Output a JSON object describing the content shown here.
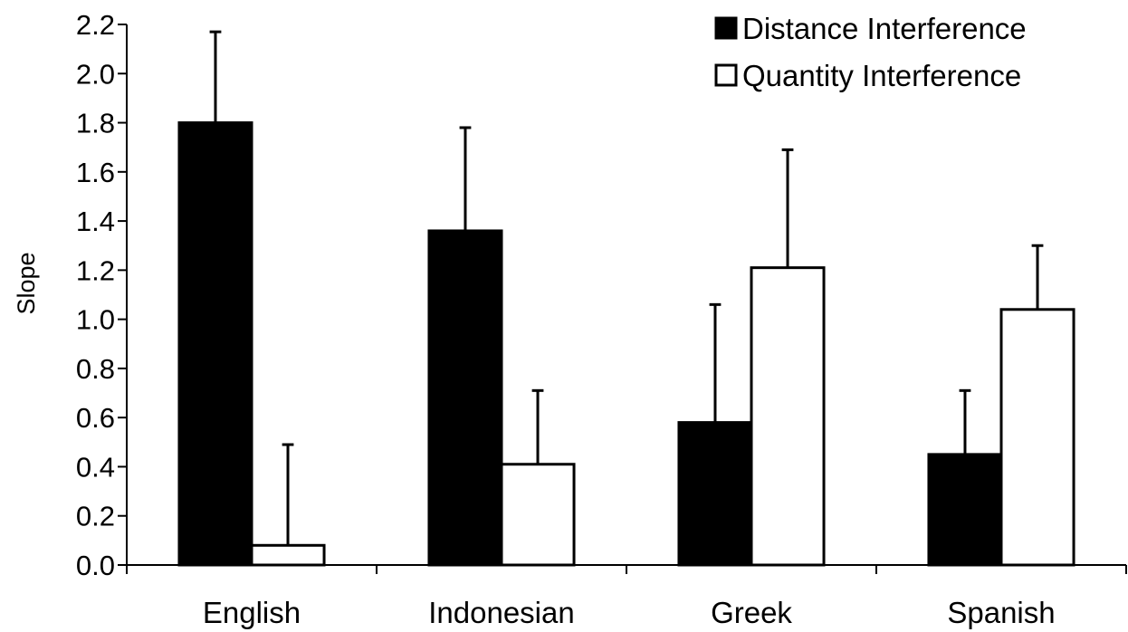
{
  "chart_data": {
    "type": "bar",
    "categories": [
      "English",
      "Indonesian",
      "Greek",
      "Spanish"
    ],
    "series": [
      {
        "name": "Distance Interference",
        "color": "#000000",
        "values": [
          1.8,
          1.36,
          0.58,
          0.45
        ],
        "error_upper": [
          2.17,
          1.78,
          1.06,
          0.71
        ]
      },
      {
        "name": "Quantity Interference",
        "color": "#ffffff",
        "values": [
          0.08,
          0.41,
          1.21,
          1.04
        ],
        "error_upper": [
          0.49,
          0.71,
          1.69,
          1.3
        ]
      }
    ],
    "title": "",
    "xlabel": "",
    "ylabel": "Slope",
    "ylim": [
      0,
      2.2
    ],
    "yticks": [
      "0.0",
      "0.2",
      "0.4",
      "0.6",
      "0.8",
      "1.0",
      "1.2",
      "1.4",
      "1.6",
      "1.8",
      "2.0",
      "2.2"
    ],
    "grid": false,
    "legend_position": "top-right"
  }
}
